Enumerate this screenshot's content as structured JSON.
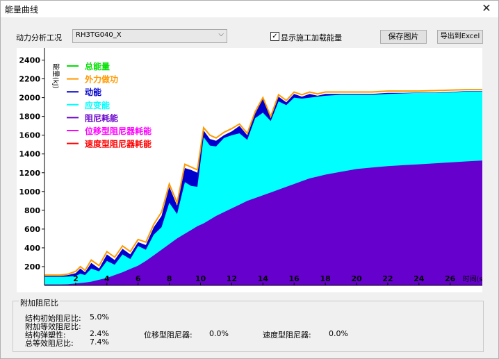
{
  "window": {
    "title": "能量曲线",
    "close_glyph": "✕"
  },
  "toolbar": {
    "case_label": "动力分析工况",
    "case_value": "RH3TG040_X",
    "dropdown_glyph": "⌵",
    "show_construction_label": "显示施工加载能量",
    "show_construction_checked": true,
    "check_glyph": "✓",
    "save_image_label": "保存图片",
    "export_excel_label": "导出到Excel"
  },
  "chart_data": {
    "type": "area",
    "ylabel": "能量(kJ)",
    "xlabel": "时间(s)",
    "xlim": [
      0,
      29.2
    ],
    "ylim": [
      0,
      2500
    ],
    "xticks": [
      2,
      4,
      6,
      8,
      10,
      12,
      14,
      16,
      18,
      20,
      22,
      24,
      26
    ],
    "xtick_labels": [
      "2",
      "4",
      "6",
      "8",
      "10",
      "12",
      "14",
      "16",
      "18",
      "20",
      "22",
      "24",
      "26"
    ],
    "yticks": [
      200,
      400,
      600,
      800,
      1000,
      1200,
      1400,
      1600,
      1800,
      2000,
      2200,
      2400
    ],
    "ytick_labels": [
      "200",
      "400",
      "600",
      "800",
      "1000",
      "1200",
      "1400",
      "1600",
      "1800",
      "2000",
      "2200",
      "2400"
    ],
    "grid": false,
    "legend_position": "top-left",
    "legend": [
      {
        "name": "总能量",
        "color": "#00e000"
      },
      {
        "name": "外力做功",
        "color": "#ff9900"
      },
      {
        "name": "动能",
        "color": "#0000cc"
      },
      {
        "name": "应变能",
        "color": "#00ffff"
      },
      {
        "name": "阻尼耗能",
        "color": "#6600cc"
      },
      {
        "name": "位移型阻尼器耗能",
        "color": "#ff00ff"
      },
      {
        "name": "速度型阻尼器耗能",
        "color": "#ff0000"
      }
    ],
    "x": [
      0,
      0.5,
      1,
      1.5,
      2,
      2.3,
      2.6,
      3,
      3.5,
      4,
      4.5,
      5,
      5.5,
      6,
      6.5,
      7,
      7.5,
      8,
      8.5,
      9,
      9.4,
      9.8,
      10.2,
      10.6,
      11,
      11.5,
      12,
      12.5,
      13,
      13.5,
      14,
      14.5,
      15,
      15.5,
      16,
      16.5,
      17,
      17.5,
      18,
      19,
      20,
      21,
      22,
      23,
      24,
      25,
      26,
      27,
      28,
      29.2
    ],
    "series": [
      {
        "name": "阻尼耗能",
        "values": [
          10,
          10,
          10,
          12,
          20,
          25,
          30,
          40,
          60,
          80,
          110,
          140,
          175,
          210,
          260,
          320,
          380,
          440,
          500,
          550,
          590,
          630,
          660,
          700,
          740,
          780,
          820,
          860,
          900,
          930,
          960,
          990,
          1020,
          1050,
          1080,
          1110,
          1140,
          1160,
          1180,
          1210,
          1240,
          1255,
          1270,
          1280,
          1290,
          1300,
          1310,
          1320,
          1330,
          1340
        ]
      },
      {
        "name": "应变能",
        "values": [
          90,
          90,
          90,
          95,
          100,
          125,
          110,
          180,
          150,
          260,
          220,
          330,
          280,
          420,
          380,
          540,
          620,
          880,
          760,
          1100,
          1060,
          1050,
          1580,
          1490,
          1480,
          1570,
          1600,
          1620,
          1550,
          1780,
          1840,
          1750,
          1960,
          1920,
          2000,
          1990,
          2000,
          2010,
          2020,
          2030,
          2030,
          2030,
          2040,
          2045,
          2050,
          2050,
          2055,
          2065,
          2065,
          2065
        ]
      },
      {
        "name": "动能",
        "values": [
          100,
          100,
          100,
          110,
          130,
          180,
          140,
          240,
          180,
          330,
          270,
          390,
          330,
          460,
          430,
          620,
          740,
          1050,
          850,
          1250,
          1230,
          1200,
          1650,
          1560,
          1540,
          1600,
          1640,
          1700,
          1600,
          1830,
          1990,
          1780,
          2010,
          1950,
          2040,
          2010,
          2040,
          2020,
          2040,
          2040,
          2040,
          2040,
          2050,
          2050,
          2055,
          2055,
          2060,
          2070,
          2070,
          2070
        ]
      },
      {
        "name": "外力做功",
        "values": [
          110,
          110,
          110,
          120,
          150,
          200,
          160,
          270,
          210,
          360,
          300,
          420,
          360,
          490,
          460,
          650,
          780,
          1080,
          880,
          1290,
          1260,
          1230,
          1680,
          1600,
          1570,
          1630,
          1670,
          1720,
          1620,
          1850,
          2000,
          1800,
          2030,
          1970,
          2060,
          2030,
          2060,
          2040,
          2060,
          2060,
          2060,
          2060,
          2070,
          2070,
          2070,
          2075,
          2080,
          2085,
          2085,
          2085
        ]
      }
    ]
  },
  "damping": {
    "group_title": "附加阻尼比",
    "initial_label": "结构初始阻尼比:",
    "initial_value": "5.0%",
    "equiv_label": "附加等效阻尼比:",
    "elastoplastic_label": "结构弹塑性:",
    "elastoplastic_value": "2.4%",
    "disp_damper_label": "位移型阻尼器:",
    "disp_damper_value": "0.0%",
    "vel_damper_label": "速度型阻尼器:",
    "vel_damper_value": "0.0%",
    "total_label": "总等效阻尼比:",
    "total_value": "7.4%"
  }
}
